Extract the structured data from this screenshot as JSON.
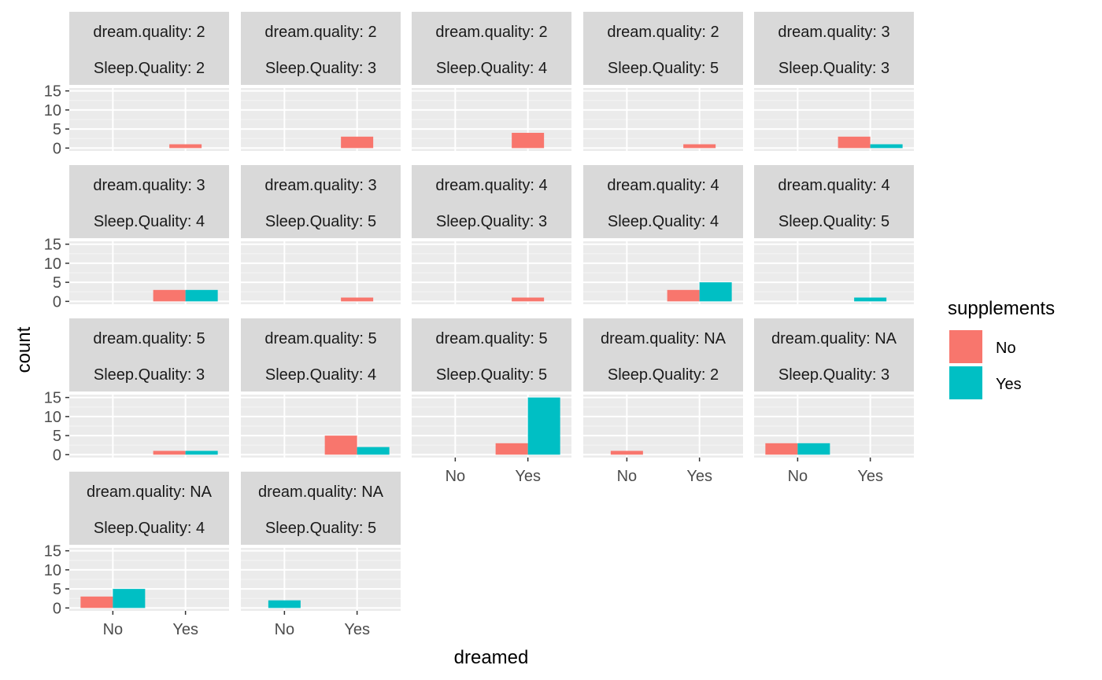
{
  "chart_data": {
    "type": "bar",
    "subtype": "faceted-dodged",
    "xlabel": "dreamed",
    "ylabel": "count",
    "categories": [
      "No",
      "Yes"
    ],
    "ylim": [
      0,
      15
    ],
    "yticks": [
      0,
      5,
      10,
      15
    ],
    "grid": true,
    "legend": {
      "title": "supplements",
      "placement": "right",
      "entries": [
        {
          "name": "No",
          "color": "#F8766D"
        },
        {
          "name": "Yes",
          "color": "#00BFC4"
        }
      ]
    },
    "facet_labels": [
      "dream.quality",
      "Sleep.Quality"
    ],
    "facets": [
      {
        "dream_quality": "2",
        "sleep_quality": "2",
        "bars": [
          {
            "x": "Yes",
            "supplements": "No",
            "count": 1
          }
        ]
      },
      {
        "dream_quality": "2",
        "sleep_quality": "3",
        "bars": [
          {
            "x": "Yes",
            "supplements": "No",
            "count": 3
          }
        ]
      },
      {
        "dream_quality": "2",
        "sleep_quality": "4",
        "bars": [
          {
            "x": "Yes",
            "supplements": "No",
            "count": 4
          }
        ]
      },
      {
        "dream_quality": "2",
        "sleep_quality": "5",
        "bars": [
          {
            "x": "Yes",
            "supplements": "No",
            "count": 1
          }
        ]
      },
      {
        "dream_quality": "3",
        "sleep_quality": "3",
        "bars": [
          {
            "x": "Yes",
            "supplements": "No",
            "count": 3
          },
          {
            "x": "Yes",
            "supplements": "Yes",
            "count": 1
          }
        ]
      },
      {
        "dream_quality": "3",
        "sleep_quality": "4",
        "bars": [
          {
            "x": "Yes",
            "supplements": "No",
            "count": 3
          },
          {
            "x": "Yes",
            "supplements": "Yes",
            "count": 3
          }
        ]
      },
      {
        "dream_quality": "3",
        "sleep_quality": "5",
        "bars": [
          {
            "x": "Yes",
            "supplements": "No",
            "count": 1
          }
        ]
      },
      {
        "dream_quality": "4",
        "sleep_quality": "3",
        "bars": [
          {
            "x": "Yes",
            "supplements": "No",
            "count": 1
          }
        ]
      },
      {
        "dream_quality": "4",
        "sleep_quality": "4",
        "bars": [
          {
            "x": "Yes",
            "supplements": "No",
            "count": 3
          },
          {
            "x": "Yes",
            "supplements": "Yes",
            "count": 5
          }
        ]
      },
      {
        "dream_quality": "4",
        "sleep_quality": "5",
        "bars": [
          {
            "x": "Yes",
            "supplements": "Yes",
            "count": 1
          }
        ]
      },
      {
        "dream_quality": "5",
        "sleep_quality": "3",
        "bars": [
          {
            "x": "Yes",
            "supplements": "No",
            "count": 1
          },
          {
            "x": "Yes",
            "supplements": "Yes",
            "count": 1
          }
        ]
      },
      {
        "dream_quality": "5",
        "sleep_quality": "4",
        "bars": [
          {
            "x": "Yes",
            "supplements": "No",
            "count": 5
          },
          {
            "x": "Yes",
            "supplements": "Yes",
            "count": 2
          }
        ]
      },
      {
        "dream_quality": "5",
        "sleep_quality": "5",
        "bars": [
          {
            "x": "Yes",
            "supplements": "No",
            "count": 3
          },
          {
            "x": "Yes",
            "supplements": "Yes",
            "count": 15
          }
        ]
      },
      {
        "dream_quality": "NA",
        "sleep_quality": "2",
        "bars": [
          {
            "x": "No",
            "supplements": "No",
            "count": 1
          }
        ]
      },
      {
        "dream_quality": "NA",
        "sleep_quality": "3",
        "bars": [
          {
            "x": "No",
            "supplements": "No",
            "count": 3
          },
          {
            "x": "No",
            "supplements": "Yes",
            "count": 3
          }
        ]
      },
      {
        "dream_quality": "NA",
        "sleep_quality": "4",
        "bars": [
          {
            "x": "No",
            "supplements": "No",
            "count": 3
          },
          {
            "x": "No",
            "supplements": "Yes",
            "count": 5
          }
        ]
      },
      {
        "dream_quality": "NA",
        "sleep_quality": "5",
        "bars": [
          {
            "x": "No",
            "supplements": "Yes",
            "count": 2
          }
        ]
      }
    ]
  }
}
